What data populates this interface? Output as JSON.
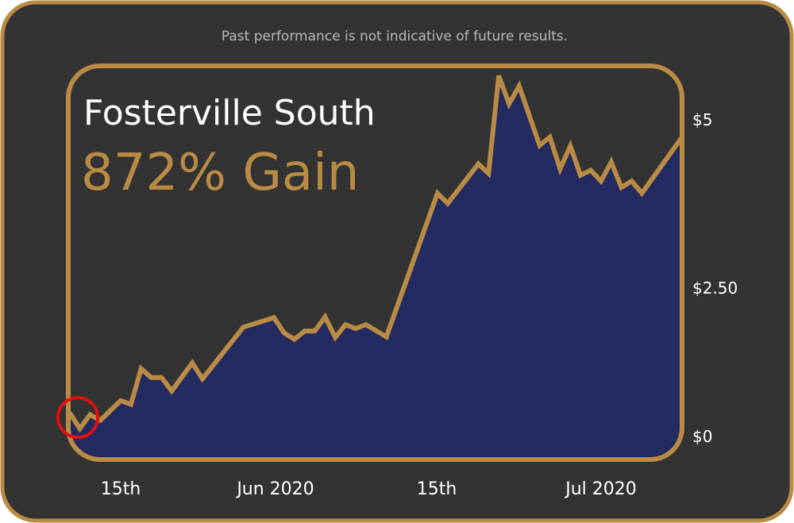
{
  "disclaimer": "Past performance is not indicative of future results.",
  "title": "Fosterville South",
  "gain_label": "872% Gain",
  "colors": {
    "background": "#333333",
    "frame": "#b98b45",
    "fill": "#232b60",
    "line": "#b98b45",
    "highlight_circle": "#e01010",
    "title": "#ffffff",
    "gain": "#b98b45"
  },
  "chart_data": {
    "type": "area",
    "title": "Fosterville South",
    "xlabel": "",
    "ylabel": "",
    "ylim": [
      0,
      5.9
    ],
    "yticks": [
      {
        "value": 0,
        "label": "$0"
      },
      {
        "value": 2.5,
        "label": "$2.50"
      },
      {
        "value": 5,
        "label": "$5"
      }
    ],
    "xticks": [
      {
        "date": "2020-05-15",
        "label": "15th"
      },
      {
        "date": "2020-06-01",
        "label": "Jun 2020"
      },
      {
        "date": "2020-06-15",
        "label": "15th"
      },
      {
        "date": "2020-07-01",
        "label": "Jul 2020"
      }
    ],
    "grid": false,
    "annotation": "red circle marking the starting low point",
    "series": [
      {
        "x": [
          "2020-05-10",
          "2020-05-11",
          "2020-05-12",
          "2020-05-13",
          "2020-05-15",
          "2020-05-16",
          "2020-05-17",
          "2020-05-18",
          "2020-05-19",
          "2020-05-20",
          "2020-05-22",
          "2020-05-23",
          "2020-05-27",
          "2020-05-30",
          "2020-05-31",
          "2020-06-01",
          "2020-06-02",
          "2020-06-03",
          "2020-06-04",
          "2020-06-05",
          "2020-06-06",
          "2020-06-07",
          "2020-06-08",
          "2020-06-10",
          "2020-06-15",
          "2020-06-16",
          "2020-06-19",
          "2020-06-20",
          "2020-06-21",
          "2020-06-22",
          "2020-06-23",
          "2020-06-24",
          "2020-06-25",
          "2020-06-26",
          "2020-06-27",
          "2020-06-28",
          "2020-06-29",
          "2020-06-30",
          "2020-07-01",
          "2020-07-02",
          "2020-07-03",
          "2020-07-04",
          "2020-07-05",
          "2020-07-08"
        ],
        "values": [
          0.41,
          0.16,
          0.38,
          0.29,
          0.6,
          0.54,
          1.1,
          0.96,
          0.96,
          0.75,
          1.19,
          0.94,
          1.75,
          1.9,
          1.66,
          1.56,
          1.69,
          1.69,
          1.91,
          1.59,
          1.79,
          1.73,
          1.79,
          1.6,
          3.85,
          3.69,
          4.31,
          4.16,
          5.69,
          5.25,
          5.53,
          5.06,
          4.6,
          4.73,
          4.23,
          4.59,
          4.13,
          4.21,
          4.04,
          4.34,
          3.94,
          4.04,
          3.85,
          4.71
        ]
      }
    ]
  }
}
